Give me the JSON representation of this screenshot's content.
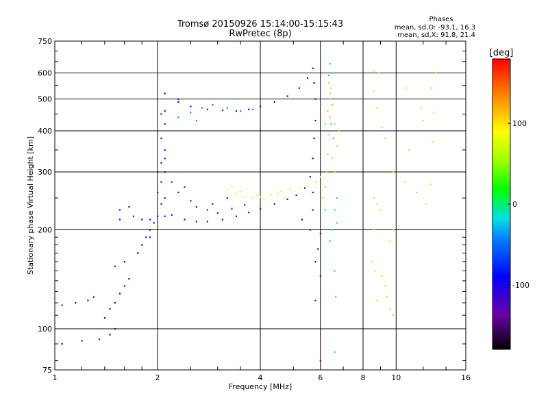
{
  "chart_data": {
    "type": "scatter",
    "title": "Tromsø 20150926 15:14:00-15:15:43",
    "subtitle": "RwPretec (8p)",
    "stats": {
      "heading": "Phases",
      "line1": "mean, sd,O: -93.1, 16.3",
      "line2": "mean, sd,X:  91.8, 21.4"
    },
    "xlabel": "Frequency [MHz]",
    "ylabel": "Stationary phase Virtual Height [km]",
    "x_scale": "log",
    "y_scale": "log",
    "xlim": [
      1,
      16
    ],
    "ylim": [
      75,
      750
    ],
    "grid": true,
    "x_ticks": [
      {
        "v": 1,
        "label": "1"
      },
      {
        "v": 2,
        "label": "2"
      },
      {
        "v": 4,
        "label": "4"
      },
      {
        "v": 6,
        "label": "6"
      },
      {
        "v": 8,
        "label": "8"
      },
      {
        "v": 10,
        "label": "10"
      },
      {
        "v": 16,
        "label": "16"
      }
    ],
    "y_ticks": [
      {
        "v": 75,
        "label": "75"
      },
      {
        "v": 100,
        "label": "100"
      },
      {
        "v": 200,
        "label": "200"
      },
      {
        "v": 300,
        "label": "300"
      },
      {
        "v": 400,
        "label": "400"
      },
      {
        "v": 500,
        "label": "500"
      },
      {
        "v": 600,
        "label": "600"
      },
      {
        "v": 750,
        "label": "750"
      }
    ],
    "colorbar": {
      "label": "[deg]",
      "range": [
        -180,
        180
      ],
      "ticks": [
        {
          "v": 100,
          "label": "100"
        },
        {
          "v": 0,
          "label": "0"
        },
        {
          "v": -100,
          "label": "-100"
        }
      ]
    },
    "series": [
      {
        "points": [
          [
            1.05,
            90
          ],
          [
            1.2,
            92
          ],
          [
            1.35,
            93
          ],
          [
            1.45,
            96
          ],
          [
            1.5,
            100
          ],
          [
            1.05,
            118
          ],
          [
            1.15,
            120
          ],
          [
            1.25,
            122
          ],
          [
            1.3,
            125
          ],
          [
            1.4,
            108
          ],
          [
            1.45,
            115
          ],
          [
            1.5,
            120
          ],
          [
            1.55,
            128
          ],
          [
            1.6,
            135
          ],
          [
            1.65,
            142
          ],
          [
            1.5,
            155
          ],
          [
            1.6,
            160
          ],
          [
            1.75,
            170
          ],
          [
            1.8,
            180
          ],
          [
            1.85,
            190
          ],
          [
            1.9,
            200
          ],
          [
            1.95,
            210
          ],
          [
            2.0,
            220
          ],
          [
            2.05,
            240
          ],
          [
            2.0,
            260
          ],
          [
            2.05,
            280
          ],
          [
            2.1,
            300
          ],
          [
            2.05,
            320
          ],
          [
            2.1,
            350
          ],
          [
            2.05,
            380
          ],
          [
            2.1,
            420
          ],
          [
            2.1,
            460
          ],
          [
            2.1,
            520
          ],
          [
            1.55,
            215
          ],
          [
            1.55,
            230
          ],
          [
            1.65,
            235
          ],
          [
            1.7,
            220
          ],
          [
            1.8,
            215
          ],
          [
            1.9,
            215
          ],
          [
            2.1,
            220
          ],
          [
            2.2,
            222
          ],
          [
            2.4,
            215
          ],
          [
            2.6,
            212
          ],
          [
            2.8,
            212
          ],
          [
            3.1,
            215
          ],
          [
            3.4,
            220
          ],
          [
            3.7,
            226
          ],
          [
            4.0,
            232
          ],
          [
            4.4,
            240
          ],
          [
            4.8,
            248
          ],
          [
            5.1,
            255
          ],
          [
            5.4,
            268
          ],
          [
            5.6,
            290
          ],
          [
            5.7,
            330
          ],
          [
            5.75,
            380
          ],
          [
            5.8,
            430
          ],
          [
            5.8,
            500
          ],
          [
            5.75,
            560
          ],
          [
            5.7,
            620
          ],
          [
            5.5,
            580
          ],
          [
            5.2,
            540
          ],
          [
            4.8,
            510
          ],
          [
            4.4,
            490
          ],
          [
            4.0,
            475
          ],
          [
            3.7,
            465
          ],
          [
            3.4,
            460
          ],
          [
            3.1,
            462
          ],
          [
            2.8,
            465
          ],
          [
            2.5,
            475
          ],
          [
            2.3,
            490
          ],
          [
            2.3,
            500
          ],
          [
            1.75,
            170
          ],
          [
            1.9,
            190
          ],
          [
            2.0,
            300
          ],
          [
            2.1,
            330
          ],
          [
            2.05,
            450
          ]
        ],
        "phase": -100
      },
      {
        "points": [
          [
            6.1,
            250
          ],
          [
            6.2,
            270
          ],
          [
            6.25,
            300
          ],
          [
            6.3,
            340
          ],
          [
            6.35,
            390
          ],
          [
            6.4,
            440
          ],
          [
            6.4,
            500
          ],
          [
            6.35,
            560
          ],
          [
            6.5,
            330
          ],
          [
            6.6,
            300
          ],
          [
            6.7,
            360
          ],
          [
            6.8,
            400
          ],
          [
            6.6,
            420
          ],
          [
            6.5,
            480
          ],
          [
            6.4,
            520
          ],
          [
            6.45,
            540
          ],
          [
            6.3,
            460
          ],
          [
            6.2,
            420
          ]
        ],
        "phase": 110
      },
      {
        "points": [
          [
            3.2,
            265
          ],
          [
            3.4,
            258
          ],
          [
            3.6,
            252
          ],
          [
            3.8,
            250
          ],
          [
            4.0,
            252
          ],
          [
            4.3,
            256
          ],
          [
            4.6,
            262
          ],
          [
            4.9,
            266
          ],
          [
            5.2,
            268
          ],
          [
            5.5,
            272
          ],
          [
            5.8,
            280
          ],
          [
            6.0,
            290
          ],
          [
            4.7,
            250
          ],
          [
            4.5,
            258
          ],
          [
            4.1,
            248
          ],
          [
            3.9,
            254
          ],
          [
            3.5,
            262
          ],
          [
            3.3,
            270
          ]
        ],
        "phase": 85
      },
      {
        "points": [
          [
            2.1,
            250
          ],
          [
            2.3,
            260
          ],
          [
            2.5,
            245
          ],
          [
            2.6,
            235
          ],
          [
            2.8,
            230
          ],
          [
            3.0,
            225
          ],
          [
            3.3,
            232
          ],
          [
            3.6,
            238
          ],
          [
            2.2,
            280
          ],
          [
            2.4,
            270
          ],
          [
            2.9,
            240
          ],
          [
            3.2,
            250
          ]
        ],
        "phase": -130
      },
      {
        "points": [
          [
            2.5,
            455
          ],
          [
            2.7,
            470
          ],
          [
            2.9,
            480
          ],
          [
            3.2,
            470
          ],
          [
            3.5,
            460
          ],
          [
            3.8,
            465
          ],
          [
            2.3,
            440
          ],
          [
            2.6,
            430
          ]
        ],
        "phase": -40
      },
      {
        "points": [
          [
            6.3,
            500
          ],
          [
            6.35,
            590
          ],
          [
            6.5,
            600
          ],
          [
            6.4,
            640
          ],
          [
            6.45,
            420
          ],
          [
            6.55,
            380
          ],
          [
            6.7,
            250
          ],
          [
            6.6,
            230
          ],
          [
            6.7,
            210
          ],
          [
            6.4,
            185
          ],
          [
            6.5,
            200
          ],
          [
            6.6,
            150
          ],
          [
            6.65,
            125
          ],
          [
            6.6,
            85
          ],
          [
            6.2,
            230
          ]
        ],
        "phase": -20
      },
      {
        "points": [
          [
            8.6,
            610
          ],
          [
            8.9,
            600
          ],
          [
            8.6,
            530
          ],
          [
            8.8,
            470
          ],
          [
            9.1,
            410
          ],
          [
            9.3,
            380
          ],
          [
            9.8,
            300
          ],
          [
            8.6,
            250
          ],
          [
            8.8,
            240
          ],
          [
            9.0,
            230
          ],
          [
            8.6,
            200
          ],
          [
            8.5,
            160
          ],
          [
            8.7,
            150
          ],
          [
            9.1,
            145
          ],
          [
            9.6,
            185
          ],
          [
            9.8,
            200
          ],
          [
            10.6,
            280
          ],
          [
            10.9,
            350
          ],
          [
            11.5,
            260
          ],
          [
            12.2,
            240
          ],
          [
            12.8,
            370
          ],
          [
            12.9,
            455
          ],
          [
            13.1,
            600
          ],
          [
            12.6,
            275
          ],
          [
            10.7,
            540
          ],
          [
            8.8,
            122
          ],
          [
            9.3,
            135
          ],
          [
            9.6,
            115
          ],
          [
            9.8,
            110
          ],
          [
            9.4,
            125
          ],
          [
            11.8,
            470
          ],
          [
            12.0,
            430
          ],
          [
            12.7,
            540
          ]
        ],
        "phase": 60
      },
      {
        "points": [
          [
            5.7,
            230
          ],
          [
            5.6,
            200
          ],
          [
            6.0,
            195
          ],
          [
            5.9,
            175
          ],
          [
            5.8,
            160
          ],
          [
            6.0,
            145
          ],
          [
            5.8,
            122
          ],
          [
            6.0,
            80
          ],
          [
            5.7,
            260
          ],
          [
            5.3,
            215
          ]
        ],
        "phase": -150
      }
    ]
  }
}
